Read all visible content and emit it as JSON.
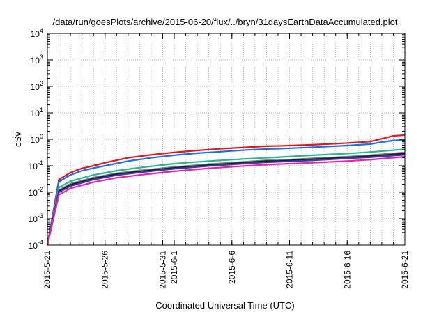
{
  "chart_data": {
    "type": "line",
    "title": "/data/run/goesPlots/archive/2015-06-20/flux/../bryn/31daysEarthDataAccumulated.plot",
    "xlabel": "Coordinated Universal Time (UTC)",
    "ylabel": "cSv",
    "x_scale": "date",
    "xlim": [
      "2015-05-21",
      "2015-06-21"
    ],
    "x_ticks": [
      "2015-5-21",
      "2015-5-26",
      "2015-5-31",
      "2015-6-1",
      "2015-6-6",
      "2015-6-11",
      "2015-6-16",
      "2015-6-21"
    ],
    "x_tick_dates": [
      "2015-05-21",
      "2015-05-26",
      "2015-05-31",
      "2015-06-01",
      "2015-06-06",
      "2015-06-11",
      "2015-06-16",
      "2015-06-21"
    ],
    "y_scale": "log",
    "ylim": [
      0.0001,
      10000
    ],
    "y_ticks": [
      {
        "base": "10",
        "exp": "-4"
      },
      {
        "base": "10",
        "exp": "-3"
      },
      {
        "base": "10",
        "exp": "-2"
      },
      {
        "base": "10",
        "exp": "-1"
      },
      {
        "base": "10",
        "exp": "0"
      },
      {
        "base": "10",
        "exp": "1"
      },
      {
        "base": "10",
        "exp": "2"
      },
      {
        "base": "10",
        "exp": "3"
      },
      {
        "base": "10",
        "exp": "4"
      }
    ],
    "grid": true,
    "legend": "none",
    "series": [
      {
        "color": "#e8141a",
        "x": [
          "2015-05-21",
          "2015-05-22",
          "2015-05-23",
          "2015-05-24",
          "2015-05-25",
          "2015-05-26",
          "2015-05-28",
          "2015-05-30",
          "2015-06-01",
          "2015-06-03",
          "2015-06-05",
          "2015-06-07",
          "2015-06-09",
          "2015-06-10",
          "2015-06-13",
          "2015-06-16",
          "2015-06-18",
          "2015-06-19",
          "2015-06-20",
          "2015-06-21"
        ],
        "y": [
          0.0001,
          0.03,
          0.055,
          0.08,
          0.1,
          0.13,
          0.2,
          0.26,
          0.32,
          0.38,
          0.44,
          0.49,
          0.55,
          0.56,
          0.62,
          0.72,
          0.82,
          1.05,
          1.35,
          1.45
        ]
      },
      {
        "color": "#1a6fe8",
        "x": [
          "2015-05-21",
          "2015-05-22",
          "2015-05-23",
          "2015-05-24",
          "2015-05-25",
          "2015-05-26",
          "2015-05-28",
          "2015-05-30",
          "2015-06-01",
          "2015-06-03",
          "2015-06-05",
          "2015-06-07",
          "2015-06-09",
          "2015-06-10",
          "2015-06-13",
          "2015-06-16",
          "2015-06-18",
          "2015-06-19",
          "2015-06-20",
          "2015-06-21"
        ],
        "y": [
          0.0001,
          0.025,
          0.045,
          0.065,
          0.082,
          0.1,
          0.15,
          0.2,
          0.25,
          0.3,
          0.34,
          0.39,
          0.43,
          0.44,
          0.5,
          0.58,
          0.66,
          0.78,
          0.9,
          0.95
        ]
      },
      {
        "color": "#22b890",
        "x": [
          "2015-05-21",
          "2015-05-22",
          "2015-05-23",
          "2015-05-25",
          "2015-05-27",
          "2015-05-29",
          "2015-06-01",
          "2015-06-04",
          "2015-06-07",
          "2015-06-09",
          "2015-06-10",
          "2015-06-13",
          "2015-06-16",
          "2015-06-18",
          "2015-06-21"
        ],
        "y": [
          0.0001,
          0.015,
          0.026,
          0.045,
          0.065,
          0.085,
          0.12,
          0.15,
          0.18,
          0.2,
          0.21,
          0.25,
          0.29,
          0.33,
          0.42
        ]
      },
      {
        "color": "#7a7a7a",
        "x": [
          "2015-05-21",
          "2015-05-22",
          "2015-05-23",
          "2015-05-25",
          "2015-05-27",
          "2015-05-29",
          "2015-06-01",
          "2015-06-04",
          "2015-06-07",
          "2015-06-09",
          "2015-06-10",
          "2015-06-13",
          "2015-06-16",
          "2015-06-18",
          "2015-06-21"
        ],
        "y": [
          0.0001,
          0.012,
          0.021,
          0.036,
          0.052,
          0.066,
          0.09,
          0.115,
          0.14,
          0.16,
          0.16,
          0.19,
          0.22,
          0.25,
          0.32
        ]
      },
      {
        "color": "#1c1c1c",
        "x": [
          "2015-05-21",
          "2015-05-22",
          "2015-05-23",
          "2015-05-25",
          "2015-05-27",
          "2015-05-29",
          "2015-06-01",
          "2015-06-04",
          "2015-06-07",
          "2015-06-09",
          "2015-06-10",
          "2015-06-13",
          "2015-06-16",
          "2015-06-18",
          "2015-06-21"
        ],
        "y": [
          0.0001,
          0.011,
          0.019,
          0.033,
          0.048,
          0.061,
          0.083,
          0.106,
          0.13,
          0.15,
          0.15,
          0.175,
          0.205,
          0.23,
          0.29
        ]
      },
      {
        "color": "#3a3aa8",
        "x": [
          "2015-05-21",
          "2015-05-22",
          "2015-05-23",
          "2015-05-25",
          "2015-05-27",
          "2015-05-29",
          "2015-06-01",
          "2015-06-04",
          "2015-06-07",
          "2015-06-09",
          "2015-06-10",
          "2015-06-13",
          "2015-06-16",
          "2015-06-18",
          "2015-06-21"
        ],
        "y": [
          0.0001,
          0.01,
          0.017,
          0.03,
          0.044,
          0.056,
          0.077,
          0.098,
          0.12,
          0.135,
          0.14,
          0.16,
          0.19,
          0.21,
          0.26
        ]
      },
      {
        "color": "#e820b8",
        "x": [
          "2015-05-21",
          "2015-05-22",
          "2015-05-23",
          "2015-05-25",
          "2015-05-27",
          "2015-05-29",
          "2015-06-01",
          "2015-06-04",
          "2015-06-07",
          "2015-06-09",
          "2015-06-10",
          "2015-06-13",
          "2015-06-16",
          "2015-06-18",
          "2015-06-21"
        ],
        "y": [
          0.0001,
          0.008,
          0.014,
          0.024,
          0.035,
          0.045,
          0.062,
          0.08,
          0.098,
          0.11,
          0.115,
          0.13,
          0.15,
          0.17,
          0.22
        ]
      }
    ]
  }
}
